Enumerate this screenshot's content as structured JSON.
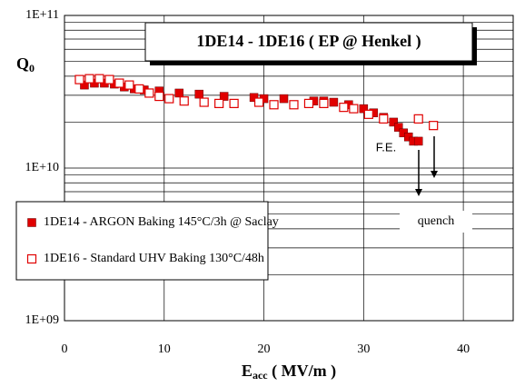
{
  "chart_data": {
    "type": "scatter",
    "title": "1DE14 - 1DE16  ( EP @ Henkel )",
    "ylabel": {
      "text": "Q",
      "subscript": "0"
    },
    "xlabel": {
      "text": "E",
      "subscript": "acc",
      "suffix": " ( MV/m )"
    },
    "annotations": [
      "F.E.",
      "quench"
    ],
    "log_y": true,
    "grid": true,
    "legend": "lower left",
    "xlim": [
      0,
      45
    ],
    "xticks": [
      0,
      10,
      20,
      30,
      40
    ],
    "ylim": [
      1000000000,
      100000000000
    ],
    "yticks": [
      {
        "value": 1000000000,
        "label": "1E+09"
      },
      {
        "value": 10000000000,
        "label": "1E+10"
      },
      {
        "value": 100000000000,
        "label": "1E+11"
      }
    ],
    "series": [
      {
        "name": "1DE14 - ARGON Baking 145°C/3h  @ Saclay",
        "color": "#e00000",
        "marker": "filled",
        "x": [
          2,
          3,
          4,
          5,
          6,
          7,
          8,
          9.5,
          11.5,
          13.5,
          16,
          19,
          20,
          22,
          25,
          26,
          27,
          28.5,
          30,
          31,
          32,
          33,
          33.5,
          34,
          34.5,
          35,
          35.5
        ],
        "values": [
          35000000000,
          36000000000,
          36000000000,
          35500000000,
          34000000000,
          33000000000,
          32500000000,
          32000000000,
          31000000000,
          30500000000,
          29500000000,
          29000000000,
          28500000000,
          28500000000,
          27500000000,
          27500000000,
          27000000000,
          26000000000,
          24500000000,
          23000000000,
          21500000000,
          20000000000,
          18500000000,
          17000000000,
          16000000000,
          15000000000,
          15000000000
        ]
      },
      {
        "name": "1DE16 - Standard UHV Baking 130°C/48h",
        "color": "#e00000",
        "marker": "open",
        "x": [
          1.5,
          2.5,
          3.5,
          4.5,
          5.5,
          6.5,
          7.5,
          8.5,
          9.5,
          10.5,
          12,
          14,
          15.5,
          17,
          19.5,
          21,
          23,
          24.5,
          26,
          28,
          29,
          30.5,
          32,
          35.5,
          37
        ],
        "values": [
          38000000000,
          38500000000,
          38500000000,
          38000000000,
          36000000000,
          35000000000,
          33000000000,
          31000000000,
          29500000000,
          28500000000,
          27500000000,
          27000000000,
          26500000000,
          26500000000,
          27000000000,
          26000000000,
          26000000000,
          26500000000,
          26500000000,
          25000000000,
          24500000000,
          22500000000,
          21000000000,
          21000000000,
          19000000000
        ]
      }
    ]
  }
}
